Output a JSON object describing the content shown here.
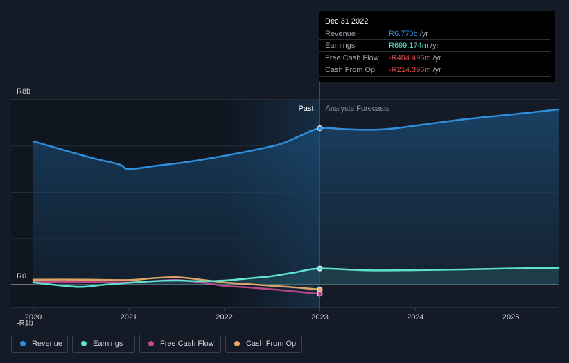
{
  "chart_data": {
    "type": "area",
    "currency_prefix": "R",
    "y_axis": {
      "min": -1,
      "max": 8,
      "unit": "b",
      "labels": [
        "R8b",
        "R0",
        "-R1b"
      ]
    },
    "x_axis": {
      "min": 2020,
      "max": 2025.5,
      "tick_labels": [
        "2020",
        "2021",
        "2022",
        "2023",
        "2024",
        "2025"
      ]
    },
    "divider": {
      "x": 2023.0,
      "past_label": "Past",
      "forecast_label": "Analysts Forecasts"
    },
    "series": [
      {
        "name": "Revenue",
        "color": "#2f8fdc",
        "filled": true,
        "points": [
          [
            2020,
            6.2
          ],
          [
            2020.3,
            5.85
          ],
          [
            2020.6,
            5.5
          ],
          [
            2020.9,
            5.2
          ],
          [
            2021,
            5.0
          ],
          [
            2021.3,
            5.15
          ],
          [
            2021.6,
            5.3
          ],
          [
            2021.9,
            5.5
          ],
          [
            2022.1,
            5.65
          ],
          [
            2022.4,
            5.9
          ],
          [
            2022.6,
            6.1
          ],
          [
            2022.8,
            6.45
          ],
          [
            2023,
            6.77
          ],
          [
            2023.25,
            6.73
          ],
          [
            2023.5,
            6.7
          ],
          [
            2023.75,
            6.75
          ],
          [
            2024,
            6.88
          ],
          [
            2024.5,
            7.15
          ],
          [
            2025,
            7.36
          ],
          [
            2025.5,
            7.58
          ]
        ]
      },
      {
        "name": "Earnings",
        "color": "#5fe3cf",
        "filled": true,
        "points": [
          [
            2020,
            0.1
          ],
          [
            2020.25,
            -0.02
          ],
          [
            2020.5,
            -0.1
          ],
          [
            2020.75,
            0.0
          ],
          [
            2021,
            0.08
          ],
          [
            2021.25,
            0.15
          ],
          [
            2021.5,
            0.18
          ],
          [
            2021.75,
            0.15
          ],
          [
            2022,
            0.18
          ],
          [
            2022.25,
            0.27
          ],
          [
            2022.5,
            0.37
          ],
          [
            2022.75,
            0.54
          ],
          [
            2023,
            0.7
          ],
          [
            2023.5,
            0.62
          ],
          [
            2024,
            0.63
          ],
          [
            2024.5,
            0.66
          ],
          [
            2025,
            0.7
          ],
          [
            2025.5,
            0.73
          ]
        ]
      },
      {
        "name": "Free Cash Flow",
        "color": "#c04a8c",
        "filled": false,
        "points": [
          [
            2020,
            0.12
          ],
          [
            2020.5,
            0.12
          ],
          [
            2021,
            0.1
          ],
          [
            2021.25,
            0.15
          ],
          [
            2021.5,
            0.2
          ],
          [
            2021.75,
            0.1
          ],
          [
            2022,
            -0.05
          ],
          [
            2022.25,
            -0.12
          ],
          [
            2022.5,
            -0.2
          ],
          [
            2022.75,
            -0.3
          ],
          [
            2023,
            -0.4
          ]
        ]
      },
      {
        "name": "Cash From Op",
        "color": "#e7ab69",
        "filled": false,
        "points": [
          [
            2020,
            0.22
          ],
          [
            2020.5,
            0.22
          ],
          [
            2021,
            0.2
          ],
          [
            2021.25,
            0.28
          ],
          [
            2021.5,
            0.32
          ],
          [
            2021.75,
            0.22
          ],
          [
            2022,
            0.1
          ],
          [
            2022.25,
            0.02
          ],
          [
            2022.5,
            -0.05
          ],
          [
            2022.75,
            -0.12
          ],
          [
            2023,
            -0.21
          ]
        ]
      }
    ]
  },
  "tooltip": {
    "date": "Dec 31 2022",
    "rows": [
      {
        "label": "Revenue",
        "value": "R6.770b",
        "unit": " /yr",
        "color": "#2f8fdc"
      },
      {
        "label": "Earnings",
        "value": "R699.174m",
        "unit": " /yr",
        "color": "#5fe3cf"
      },
      {
        "label": "Free Cash Flow",
        "value": "-R404.496m",
        "unit": " /yr",
        "color": "#e64c4c"
      },
      {
        "label": "Cash From Op",
        "value": "-R214.396m",
        "unit": " /yr",
        "color": "#e64c4c"
      }
    ]
  },
  "legend": [
    {
      "label": "Revenue",
      "color": "#2f8fdc"
    },
    {
      "label": "Earnings",
      "color": "#5fe3cf"
    },
    {
      "label": "Free Cash Flow",
      "color": "#c04a8c"
    },
    {
      "label": "Cash From Op",
      "color": "#e7ab69"
    }
  ]
}
